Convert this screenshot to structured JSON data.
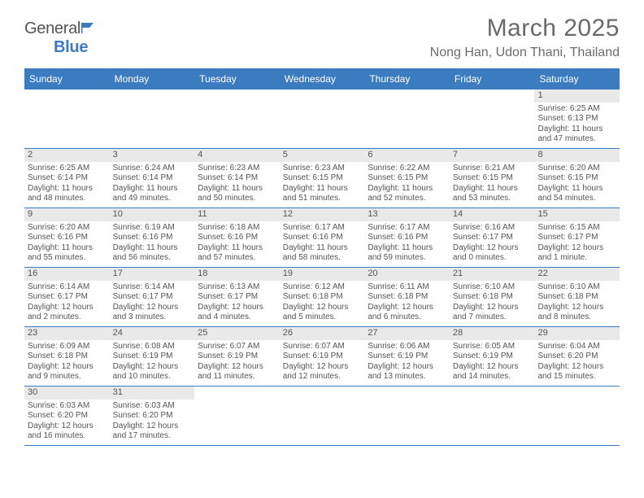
{
  "logo": {
    "prefix": "General",
    "suffix": "Blue"
  },
  "title": "March 2025",
  "location": "Nong Han, Udon Thani, Thailand",
  "headers": [
    "Sunday",
    "Monday",
    "Tuesday",
    "Wednesday",
    "Thursday",
    "Friday",
    "Saturday"
  ],
  "colors": {
    "accent": "#3b7bbf",
    "headerBg": "#e9e9e9",
    "text": "#555555"
  },
  "weeks": [
    [
      {
        "num": "",
        "empty": true
      },
      {
        "num": "",
        "empty": true
      },
      {
        "num": "",
        "empty": true
      },
      {
        "num": "",
        "empty": true
      },
      {
        "num": "",
        "empty": true
      },
      {
        "num": "",
        "empty": true
      },
      {
        "num": "1",
        "sunrise": "Sunrise: 6:25 AM",
        "sunset": "Sunset: 6:13 PM",
        "daylight": "Daylight: 11 hours and 47 minutes."
      }
    ],
    [
      {
        "num": "2",
        "sunrise": "Sunrise: 6:25 AM",
        "sunset": "Sunset: 6:14 PM",
        "daylight": "Daylight: 11 hours and 48 minutes."
      },
      {
        "num": "3",
        "sunrise": "Sunrise: 6:24 AM",
        "sunset": "Sunset: 6:14 PM",
        "daylight": "Daylight: 11 hours and 49 minutes."
      },
      {
        "num": "4",
        "sunrise": "Sunrise: 6:23 AM",
        "sunset": "Sunset: 6:14 PM",
        "daylight": "Daylight: 11 hours and 50 minutes."
      },
      {
        "num": "5",
        "sunrise": "Sunrise: 6:23 AM",
        "sunset": "Sunset: 6:15 PM",
        "daylight": "Daylight: 11 hours and 51 minutes."
      },
      {
        "num": "6",
        "sunrise": "Sunrise: 6:22 AM",
        "sunset": "Sunset: 6:15 PM",
        "daylight": "Daylight: 11 hours and 52 minutes."
      },
      {
        "num": "7",
        "sunrise": "Sunrise: 6:21 AM",
        "sunset": "Sunset: 6:15 PM",
        "daylight": "Daylight: 11 hours and 53 minutes."
      },
      {
        "num": "8",
        "sunrise": "Sunrise: 6:20 AM",
        "sunset": "Sunset: 6:15 PM",
        "daylight": "Daylight: 11 hours and 54 minutes."
      }
    ],
    [
      {
        "num": "9",
        "sunrise": "Sunrise: 6:20 AM",
        "sunset": "Sunset: 6:16 PM",
        "daylight": "Daylight: 11 hours and 55 minutes."
      },
      {
        "num": "10",
        "sunrise": "Sunrise: 6:19 AM",
        "sunset": "Sunset: 6:16 PM",
        "daylight": "Daylight: 11 hours and 56 minutes."
      },
      {
        "num": "11",
        "sunrise": "Sunrise: 6:18 AM",
        "sunset": "Sunset: 6:16 PM",
        "daylight": "Daylight: 11 hours and 57 minutes."
      },
      {
        "num": "12",
        "sunrise": "Sunrise: 6:17 AM",
        "sunset": "Sunset: 6:16 PM",
        "daylight": "Daylight: 11 hours and 58 minutes."
      },
      {
        "num": "13",
        "sunrise": "Sunrise: 6:17 AM",
        "sunset": "Sunset: 6:16 PM",
        "daylight": "Daylight: 11 hours and 59 minutes."
      },
      {
        "num": "14",
        "sunrise": "Sunrise: 6:16 AM",
        "sunset": "Sunset: 6:17 PM",
        "daylight": "Daylight: 12 hours and 0 minutes."
      },
      {
        "num": "15",
        "sunrise": "Sunrise: 6:15 AM",
        "sunset": "Sunset: 6:17 PM",
        "daylight": "Daylight: 12 hours and 1 minute."
      }
    ],
    [
      {
        "num": "16",
        "sunrise": "Sunrise: 6:14 AM",
        "sunset": "Sunset: 6:17 PM",
        "daylight": "Daylight: 12 hours and 2 minutes."
      },
      {
        "num": "17",
        "sunrise": "Sunrise: 6:14 AM",
        "sunset": "Sunset: 6:17 PM",
        "daylight": "Daylight: 12 hours and 3 minutes."
      },
      {
        "num": "18",
        "sunrise": "Sunrise: 6:13 AM",
        "sunset": "Sunset: 6:17 PM",
        "daylight": "Daylight: 12 hours and 4 minutes."
      },
      {
        "num": "19",
        "sunrise": "Sunrise: 6:12 AM",
        "sunset": "Sunset: 6:18 PM",
        "daylight": "Daylight: 12 hours and 5 minutes."
      },
      {
        "num": "20",
        "sunrise": "Sunrise: 6:11 AM",
        "sunset": "Sunset: 6:18 PM",
        "daylight": "Daylight: 12 hours and 6 minutes."
      },
      {
        "num": "21",
        "sunrise": "Sunrise: 6:10 AM",
        "sunset": "Sunset: 6:18 PM",
        "daylight": "Daylight: 12 hours and 7 minutes."
      },
      {
        "num": "22",
        "sunrise": "Sunrise: 6:10 AM",
        "sunset": "Sunset: 6:18 PM",
        "daylight": "Daylight: 12 hours and 8 minutes."
      }
    ],
    [
      {
        "num": "23",
        "sunrise": "Sunrise: 6:09 AM",
        "sunset": "Sunset: 6:18 PM",
        "daylight": "Daylight: 12 hours and 9 minutes."
      },
      {
        "num": "24",
        "sunrise": "Sunrise: 6:08 AM",
        "sunset": "Sunset: 6:19 PM",
        "daylight": "Daylight: 12 hours and 10 minutes."
      },
      {
        "num": "25",
        "sunrise": "Sunrise: 6:07 AM",
        "sunset": "Sunset: 6:19 PM",
        "daylight": "Daylight: 12 hours and 11 minutes."
      },
      {
        "num": "26",
        "sunrise": "Sunrise: 6:07 AM",
        "sunset": "Sunset: 6:19 PM",
        "daylight": "Daylight: 12 hours and 12 minutes."
      },
      {
        "num": "27",
        "sunrise": "Sunrise: 6:06 AM",
        "sunset": "Sunset: 6:19 PM",
        "daylight": "Daylight: 12 hours and 13 minutes."
      },
      {
        "num": "28",
        "sunrise": "Sunrise: 6:05 AM",
        "sunset": "Sunset: 6:19 PM",
        "daylight": "Daylight: 12 hours and 14 minutes."
      },
      {
        "num": "29",
        "sunrise": "Sunrise: 6:04 AM",
        "sunset": "Sunset: 6:20 PM",
        "daylight": "Daylight: 12 hours and 15 minutes."
      }
    ],
    [
      {
        "num": "30",
        "sunrise": "Sunrise: 6:03 AM",
        "sunset": "Sunset: 6:20 PM",
        "daylight": "Daylight: 12 hours and 16 minutes."
      },
      {
        "num": "31",
        "sunrise": "Sunrise: 6:03 AM",
        "sunset": "Sunset: 6:20 PM",
        "daylight": "Daylight: 12 hours and 17 minutes."
      },
      {
        "num": "",
        "empty": true
      },
      {
        "num": "",
        "empty": true
      },
      {
        "num": "",
        "empty": true
      },
      {
        "num": "",
        "empty": true
      },
      {
        "num": "",
        "empty": true
      }
    ]
  ]
}
